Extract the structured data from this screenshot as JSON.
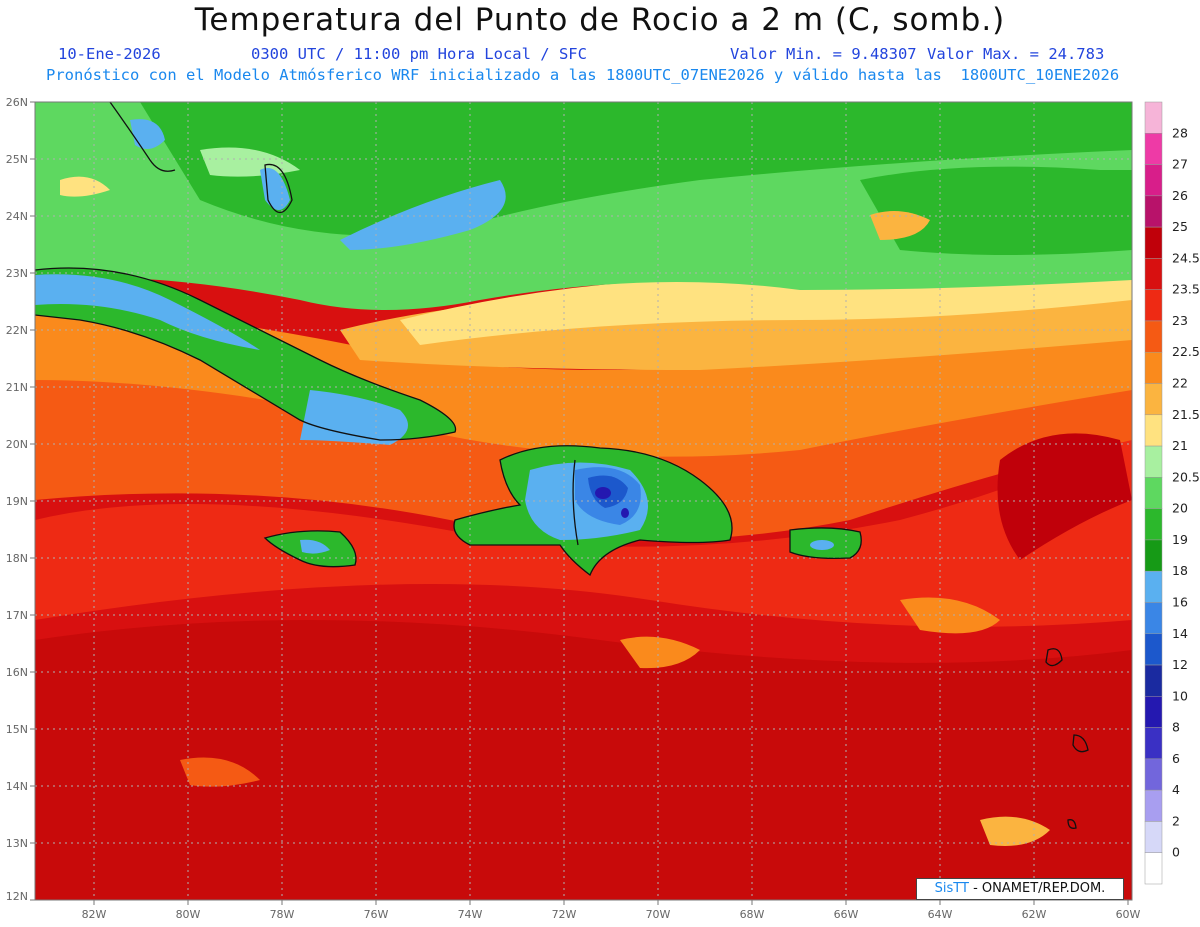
{
  "header": {
    "title": "Temperatura del Punto de Rocio a 2 m (C, somb.)",
    "date": "10-Ene-2026",
    "time": "0300 UTC / 11:00 pm Hora Local / SFC",
    "min_label": "Valor Min. = 9.48307",
    "max_label": "Valor Max. = 24.783",
    "model_line": "Pronóstico con el Modelo Atmósferico WRF inicializado a las 1800UTC_07ENE2026 y válido hasta las  1800UTC_10ENE2026"
  },
  "map": {
    "lat_labels": [
      "26N",
      "25N",
      "24N",
      "23N",
      "22N",
      "21N",
      "20N",
      "19N",
      "18N",
      "17N",
      "16N",
      "15N",
      "14N",
      "13N",
      "12N"
    ],
    "lon_labels": [
      "82W",
      "80W",
      "78W",
      "76W",
      "74W",
      "72W",
      "70W",
      "68W",
      "66W",
      "64W",
      "62W",
      "60W"
    ],
    "lat_range": [
      12,
      26
    ],
    "lon_range": [
      -83.2,
      -60
    ]
  },
  "colorbar": {
    "levels": [
      "28",
      "27",
      "26",
      "25",
      "24.5",
      "23.5",
      "23",
      "22.5",
      "22",
      "21.5",
      "21",
      "20.5",
      "20",
      "19",
      "18",
      "16",
      "14",
      "12",
      "10",
      "8",
      "6",
      "4",
      "2",
      "0"
    ],
    "colors": [
      "#f6b4d8",
      "#ee3aa6",
      "#d81e8a",
      "#b8126a",
      "#c0000a",
      "#d81010",
      "#ee2a14",
      "#f55a14",
      "#fa8a1c",
      "#fbb440",
      "#ffe280",
      "#a8f0a0",
      "#5ed860",
      "#2cb82c",
      "#169a16",
      "#5ab0f0",
      "#3a86e6",
      "#1c58cc",
      "#1a2aa0",
      "#2418b0",
      "#3a30c4",
      "#7266dc",
      "#a89ef0",
      "#d6d8f8",
      "#ffffff"
    ]
  },
  "credit": {
    "logo": "SisTT",
    "text": "- ONAMET/REP.DOM."
  }
}
